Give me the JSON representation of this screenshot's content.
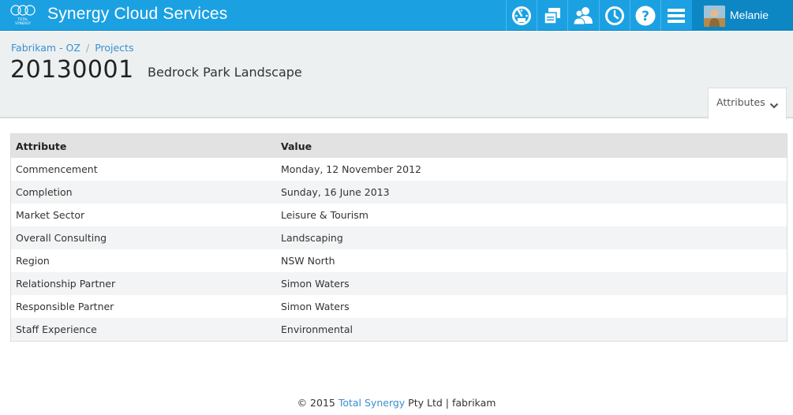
{
  "app": {
    "title": "Synergy Cloud Services",
    "logo_text": "TOTAL SYNERGY",
    "brand_color": "#1ba1e2"
  },
  "nav": {
    "icons": [
      "speedometer-icon",
      "windows-icon",
      "people-icon",
      "clock-icon",
      "help-icon",
      "menu-icon"
    ]
  },
  "user": {
    "name": "Melanie"
  },
  "breadcrumb": {
    "items": [
      "Fabrikam - OZ",
      "Projects"
    ]
  },
  "project": {
    "code": "20130001",
    "name": "Bedrock Park Landscape"
  },
  "attributes_tab": {
    "label": "Attributes"
  },
  "table": {
    "headers": [
      "Attribute",
      "Value"
    ],
    "rows": [
      [
        "Commencement",
        "Monday, 12 November 2012"
      ],
      [
        "Completion",
        "Sunday, 16 June 2013"
      ],
      [
        "Market Sector",
        "Leisure & Tourism"
      ],
      [
        "Overall Consulting",
        "Landscaping"
      ],
      [
        "Region",
        "NSW North"
      ],
      [
        "Relationship Partner",
        "Simon Waters"
      ],
      [
        "Responsible Partner",
        "Simon Waters"
      ],
      [
        "Staff Experience",
        "Environmental"
      ]
    ]
  },
  "footer": {
    "prefix": "© 2015 ",
    "link": "Total Synergy",
    "suffix": " Pty Ltd | fabrikam"
  }
}
